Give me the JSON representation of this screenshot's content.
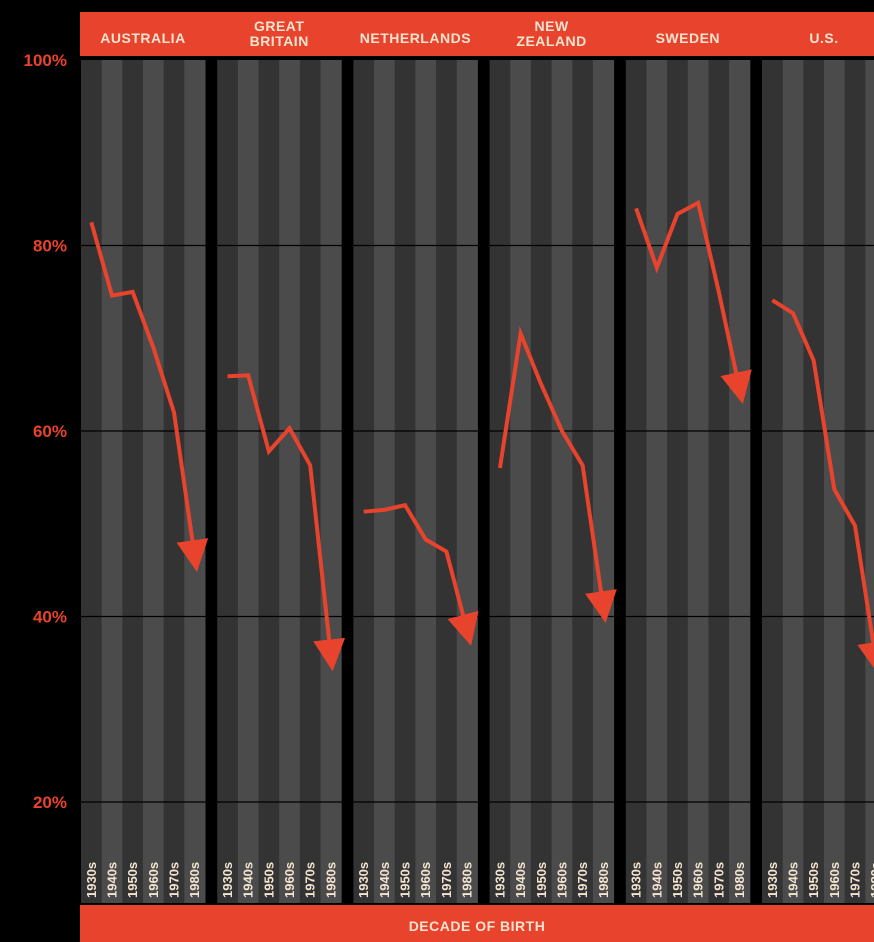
{
  "chart_data": {
    "type": "line",
    "xlabel": "DECADE OF BIRTH",
    "ylabel": "",
    "ylim": [
      10,
      100
    ],
    "y_ticks": [
      "100%",
      "80%",
      "60%",
      "40%",
      "20%"
    ],
    "y_tick_values": [
      100,
      80,
      60,
      40,
      20
    ],
    "categories": [
      "1930s",
      "1940s",
      "1950s",
      "1960s",
      "1970s",
      "1980s"
    ],
    "grid": true,
    "colors": {
      "line": "#e8432d",
      "header": "#e8432d",
      "band_dark": "#333333",
      "band_light": "#4b4b4b"
    },
    "panels": [
      {
        "name": "AUSTRALIA",
        "values": [
          82.5,
          74.6,
          75.0,
          69.0,
          62.0,
          46.5
        ]
      },
      {
        "name": "GREAT BRITAIN",
        "values": [
          65.9,
          66.0,
          57.8,
          60.3,
          56.3,
          35.8
        ]
      },
      {
        "name": "NETHERLANDS",
        "values": [
          51.3,
          51.5,
          52.0,
          48.3,
          47.0,
          38.5
        ]
      },
      {
        "name": "NEW ZEALAND",
        "values": [
          56.0,
          70.5,
          65.0,
          60.0,
          56.3,
          41.0
        ]
      },
      {
        "name": "SWEDEN",
        "values": [
          84.0,
          77.6,
          83.4,
          84.6,
          75.0,
          64.6
        ]
      },
      {
        "name": "U.S.",
        "values": [
          74.1,
          72.7,
          67.6,
          53.7,
          49.8,
          35.5
        ]
      }
    ]
  }
}
